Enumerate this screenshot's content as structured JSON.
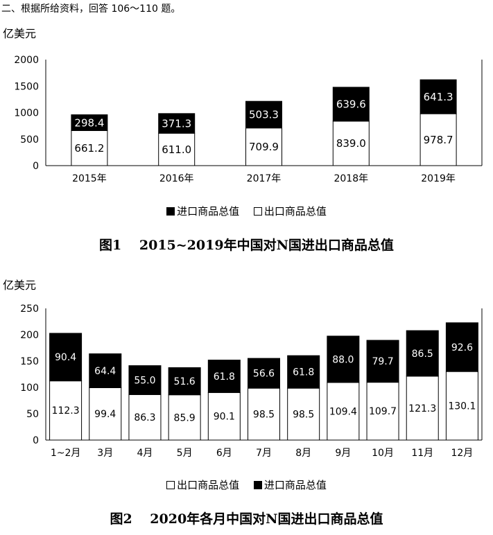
{
  "intro": "二、根据所给资料，回答 106～110 题。",
  "charts": {
    "fig1": {
      "caption": "图1　 2015~2019年中国对N国进出口商品总值",
      "unit": "亿美元",
      "legend": [
        "进口商品总值",
        "出口商品总值"
      ]
    },
    "fig2": {
      "caption": "图2　 2020年各月中国对N国进出口商品总值",
      "unit": "亿美元",
      "legend": [
        "出口商品总值",
        "进口商品总值"
      ]
    }
  },
  "chart_data": [
    {
      "type": "bar",
      "stacked": true,
      "title": "图1　 2015~2019年中国对N国进出口商品总值",
      "ylabel": "亿美元",
      "ylim": [
        0,
        2000
      ],
      "yticks": [
        0,
        500,
        1000,
        1500,
        2000
      ],
      "categories": [
        "2015年",
        "2016年",
        "2017年",
        "2018年",
        "2019年"
      ],
      "series": [
        {
          "name": "出口商品总值",
          "color": "#ffffff",
          "values": [
            661.2,
            611.0,
            709.9,
            839.0,
            978.7
          ]
        },
        {
          "name": "进口商品总值",
          "color": "#000000",
          "values": [
            298.4,
            371.3,
            503.3,
            639.6,
            641.3
          ]
        }
      ],
      "legend_position": "bottom"
    },
    {
      "type": "bar",
      "stacked": true,
      "title": "图2　 2020年各月中国对N国进出口商品总值",
      "ylabel": "亿美元",
      "ylim": [
        0,
        250
      ],
      "yticks": [
        0,
        50,
        100,
        150,
        200,
        250
      ],
      "categories": [
        "1~2月",
        "3月",
        "4月",
        "5月",
        "6月",
        "7月",
        "8月",
        "9月",
        "10月",
        "11月",
        "12月"
      ],
      "series": [
        {
          "name": "出口商品总值",
          "color": "#ffffff",
          "values": [
            112.3,
            99.4,
            86.3,
            85.9,
            90.1,
            98.5,
            98.5,
            109.4,
            109.7,
            121.3,
            130.1
          ]
        },
        {
          "name": "进口商品总值",
          "color": "#000000",
          "values": [
            90.4,
            64.4,
            55.0,
            51.6,
            61.8,
            56.6,
            61.8,
            88.0,
            79.7,
            86.5,
            92.6
          ]
        }
      ],
      "legend_position": "bottom"
    }
  ]
}
